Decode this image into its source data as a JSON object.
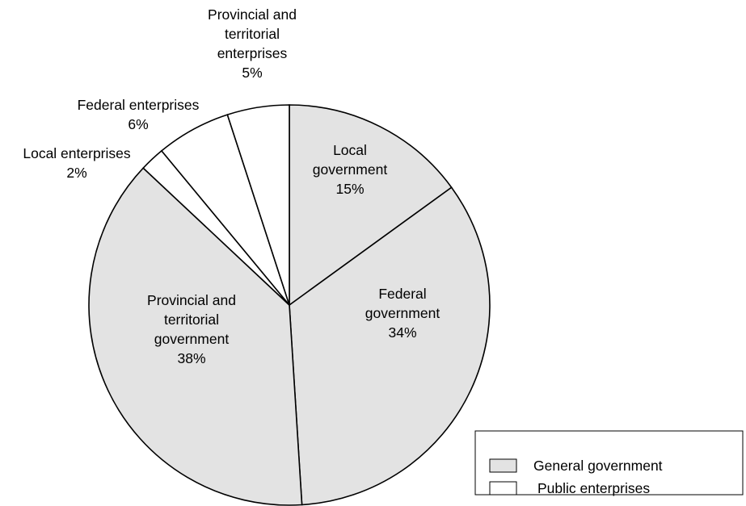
{
  "chart_data": {
    "type": "pie",
    "title": "",
    "colors": {
      "general_government": "#e3e3e3",
      "public_enterprises": "#ffffff"
    },
    "slices": [
      {
        "key": "local-government",
        "lines": [
          "Local",
          "government"
        ],
        "percent_label": "15%",
        "value": 15,
        "group": "general_government"
      },
      {
        "key": "federal-government",
        "lines": [
          "Federal",
          "government"
        ],
        "percent_label": "34%",
        "value": 34,
        "group": "general_government"
      },
      {
        "key": "provincial-territorial-government",
        "lines": [
          "Provincial and",
          "territorial",
          "government"
        ],
        "percent_label": "38%",
        "value": 38,
        "group": "general_government"
      },
      {
        "key": "local-enterprises",
        "lines": [
          "Local enterprises"
        ],
        "percent_label": "2%",
        "value": 2,
        "group": "public_enterprises"
      },
      {
        "key": "federal-enterprises",
        "lines": [
          "Federal enterprises"
        ],
        "percent_label": "6%",
        "value": 6,
        "group": "public_enterprises"
      },
      {
        "key": "provincial-territorial-enterprises",
        "lines": [
          "Provincial and",
          "territorial",
          "enterprises"
        ],
        "percent_label": "5%",
        "value": 5,
        "group": "public_enterprises"
      }
    ],
    "legend": {
      "placement": "bottom-right",
      "entries": [
        {
          "label": "General government",
          "group": "general_government"
        },
        {
          "label": "Public enterprises",
          "group": "public_enterprises"
        }
      ]
    }
  }
}
